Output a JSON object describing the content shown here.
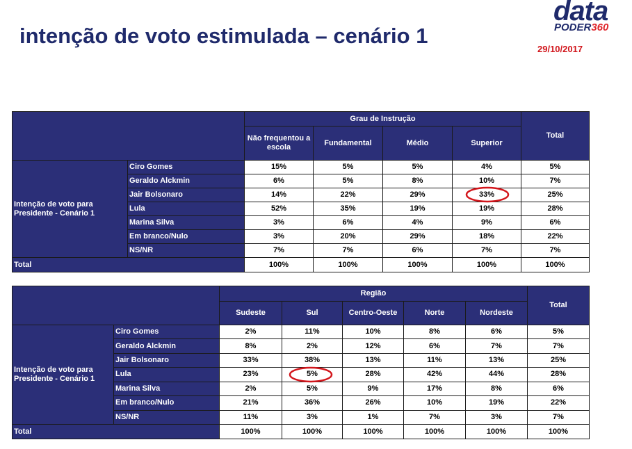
{
  "header": {
    "title": "intenção de voto estimulada – cenário 1",
    "logo_top": "data",
    "logo_bottom": "PODER",
    "logo_number": "360",
    "date": "29/10/2017"
  },
  "tables": [
    {
      "group_header": "Grau de Instrução",
      "columns": [
        "Não frequentou a escola",
        "Fundamental",
        "Médio",
        "Superior"
      ],
      "total_header": "Total",
      "row_group": "Intenção de voto para Presidente - Cenário 1",
      "rows": [
        {
          "label": "Ciro Gomes",
          "values": [
            "15%",
            "5%",
            "5%",
            "4%",
            "5%"
          ]
        },
        {
          "label": "Geraldo Alckmin",
          "values": [
            "6%",
            "5%",
            "8%",
            "10%",
            "7%"
          ]
        },
        {
          "label": "Jair Bolsonaro",
          "values": [
            "14%",
            "22%",
            "29%",
            "33%",
            "25%"
          ]
        },
        {
          "label": "Lula",
          "values": [
            "52%",
            "35%",
            "19%",
            "19%",
            "28%"
          ]
        },
        {
          "label": "Marina Silva",
          "values": [
            "3%",
            "6%",
            "4%",
            "9%",
            "6%"
          ]
        },
        {
          "label": "Em branco/Nulo",
          "values": [
            "3%",
            "20%",
            "29%",
            "18%",
            "22%"
          ]
        },
        {
          "label": "NS/NR",
          "values": [
            "7%",
            "7%",
            "6%",
            "7%",
            "7%"
          ]
        }
      ],
      "total_row": {
        "label": "Total",
        "values": [
          "100%",
          "100%",
          "100%",
          "100%",
          "100%"
        ]
      }
    },
    {
      "group_header": "Região",
      "columns": [
        "Sudeste",
        "Sul",
        "Centro-Oeste",
        "Norte",
        "Nordeste"
      ],
      "total_header": "Total",
      "row_group": "Intenção de voto para Presidente - Cenário 1",
      "rows": [
        {
          "label": "Ciro Gomes",
          "values": [
            "2%",
            "11%",
            "10%",
            "8%",
            "6%",
            "5%"
          ]
        },
        {
          "label": "Geraldo Alckmin",
          "values": [
            "8%",
            "2%",
            "12%",
            "6%",
            "7%",
            "7%"
          ]
        },
        {
          "label": "Jair Bolsonaro",
          "values": [
            "33%",
            "38%",
            "13%",
            "11%",
            "13%",
            "25%"
          ]
        },
        {
          "label": "Lula",
          "values": [
            "23%",
            "5%",
            "28%",
            "42%",
            "44%",
            "28%"
          ]
        },
        {
          "label": "Marina Silva",
          "values": [
            "2%",
            "5%",
            "9%",
            "17%",
            "8%",
            "6%"
          ]
        },
        {
          "label": "Em branco/Nulo",
          "values": [
            "21%",
            "36%",
            "26%",
            "10%",
            "19%",
            "22%"
          ]
        },
        {
          "label": "NS/NR",
          "values": [
            "11%",
            "3%",
            "1%",
            "7%",
            "3%",
            "7%"
          ]
        }
      ],
      "total_row": {
        "label": "Total",
        "values": [
          "100%",
          "100%",
          "100%",
          "100%",
          "100%",
          "100%"
        ]
      }
    }
  ]
}
